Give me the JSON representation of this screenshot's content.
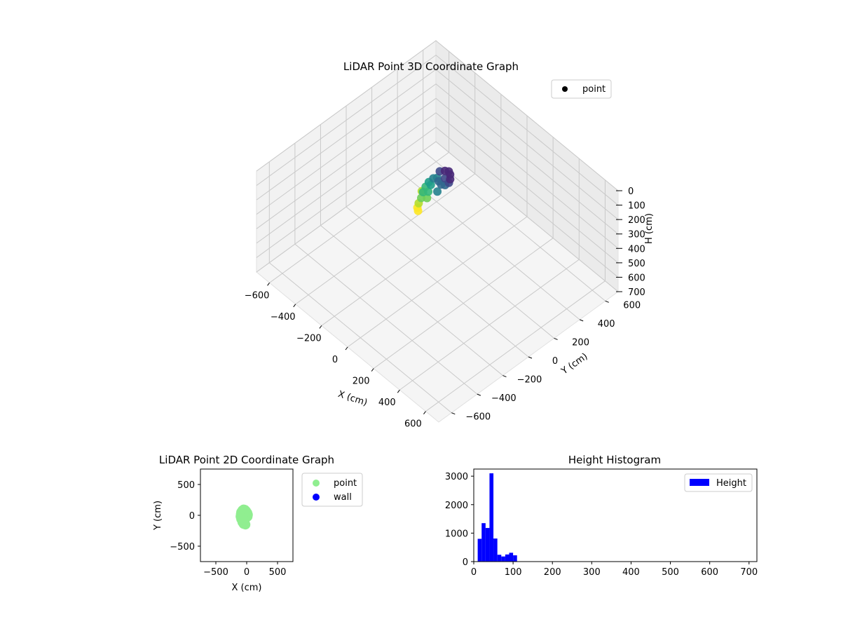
{
  "chart_data": [
    {
      "type": "scatter3d",
      "title": "LiDAR Point 3D Coordinate Graph",
      "xlabel": "X (cm)",
      "ylabel": "Y (cm)",
      "zlabel": "H (cm)",
      "xlim": [
        -700,
        700
      ],
      "ylim": [
        -700,
        700
      ],
      "zlim": [
        700,
        0
      ],
      "xticks": [
        -600,
        -400,
        -200,
        0,
        200,
        400,
        600
      ],
      "yticks": [
        -600,
        -400,
        -200,
        0,
        200,
        400,
        600
      ],
      "zticks": [
        0,
        100,
        200,
        300,
        400,
        500,
        600,
        700
      ],
      "grid": true,
      "legend_position": "upper-right",
      "colormap": "viridis",
      "legend": [
        {
          "label": "point",
          "color": "#3b1a6b"
        }
      ],
      "series": [
        {
          "name": "point",
          "points": [
            [
              -60,
              80,
              30
            ],
            [
              -40,
              100,
              25
            ],
            [
              -20,
              110,
              20
            ],
            [
              0,
              100,
              20
            ],
            [
              20,
              80,
              25
            ],
            [
              30,
              60,
              30
            ],
            [
              20,
              40,
              40
            ],
            [
              0,
              30,
              45
            ],
            [
              -30,
              40,
              50
            ],
            [
              -55,
              55,
              55
            ],
            [
              -70,
              40,
              60
            ],
            [
              -75,
              10,
              70
            ],
            [
              -70,
              -20,
              80
            ],
            [
              -60,
              -50,
              90
            ],
            [
              -45,
              -80,
              100
            ],
            [
              -35,
              -110,
              110
            ],
            [
              -25,
              -130,
              120
            ],
            [
              -10,
              -140,
              125
            ],
            [
              -50,
              0,
              65
            ],
            [
              -40,
              -30,
              85
            ],
            [
              -20,
              -60,
              95
            ],
            [
              10,
              -10,
              60
            ],
            [
              -10,
              70,
              35
            ],
            [
              -80,
              -40,
              105
            ]
          ]
        }
      ]
    },
    {
      "type": "scatter",
      "title": "LiDAR Point 2D Coordinate Graph",
      "xlabel": "X (cm)",
      "ylabel": "Y (cm)",
      "xlim": [
        -750,
        750
      ],
      "ylim": [
        -750,
        750
      ],
      "xticks": [
        -500,
        0,
        500
      ],
      "yticks": [
        -500,
        0,
        500
      ],
      "legend_position": "outside-upper-right",
      "legend": [
        {
          "label": "point",
          "color": "#90ee90"
        },
        {
          "label": "wall",
          "color": "#0000ff"
        }
      ],
      "series": [
        {
          "name": "point",
          "color": "#90ee90",
          "points": [
            [
              -90,
              50
            ],
            [
              -70,
              80
            ],
            [
              -50,
              95
            ],
            [
              -30,
              90
            ],
            [
              -10,
              70
            ],
            [
              10,
              40
            ],
            [
              20,
              10
            ],
            [
              15,
              -20
            ],
            [
              -10,
              -40
            ],
            [
              -40,
              -60
            ],
            [
              -60,
              -80
            ],
            [
              -40,
              -100
            ],
            [
              -30,
              -130
            ],
            [
              -20,
              -150
            ],
            [
              -50,
              -140
            ],
            [
              -70,
              -110
            ],
            [
              -90,
              -60
            ],
            [
              -100,
              -20
            ],
            [
              -95,
              20
            ],
            [
              -60,
              0
            ],
            [
              -30,
              20
            ],
            [
              -20,
              -10
            ],
            [
              -50,
              -30
            ],
            [
              -70,
              40
            ],
            [
              0,
              0
            ],
            [
              -15,
              45
            ],
            [
              -80,
              -40
            ],
            [
              -35,
              -80
            ]
          ]
        },
        {
          "name": "wall",
          "color": "#0000ff",
          "points": []
        }
      ]
    },
    {
      "type": "bar",
      "title": "Height Histogram",
      "xlabel": "",
      "ylabel": "",
      "xlim": [
        0,
        720
      ],
      "ylim": [
        0,
        3250
      ],
      "xticks": [
        0,
        100,
        200,
        300,
        400,
        500,
        600,
        700
      ],
      "yticks": [
        0,
        1000,
        2000,
        3000
      ],
      "legend_position": "upper-right",
      "bin_width": 10,
      "bars_color": "#0000ff",
      "series": [
        {
          "name": "Height",
          "bins": [
            [
              15,
              800
            ],
            [
              25,
              1350
            ],
            [
              35,
              1180
            ],
            [
              45,
              3100
            ],
            [
              55,
              810
            ],
            [
              65,
              240
            ],
            [
              75,
              180
            ],
            [
              85,
              250
            ],
            [
              95,
              310
            ],
            [
              105,
              220
            ]
          ]
        }
      ]
    }
  ]
}
